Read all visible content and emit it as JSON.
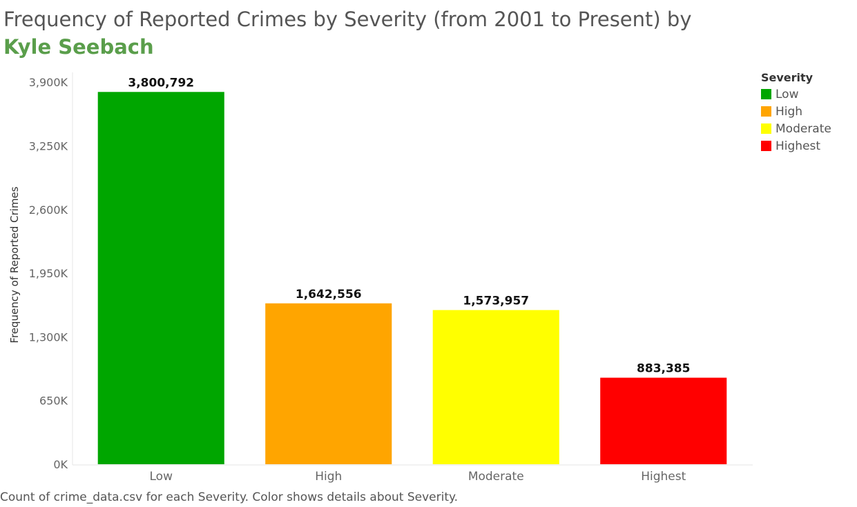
{
  "title": {
    "main": "Frequency of Reported Crimes by Severity (from 2001 to Present) by ",
    "author": "Kyle Seebach"
  },
  "legend": {
    "title": "Severity",
    "items": [
      {
        "label": "Low",
        "color": "#00a600"
      },
      {
        "label": "High",
        "color": "#ffa500"
      },
      {
        "label": "Moderate",
        "color": "#ffff00"
      },
      {
        "label": "Highest",
        "color": "#ff0000"
      }
    ]
  },
  "caption": "Count of crime_data.csv for each Severity.  Color shows details about Severity.",
  "chart_data": {
    "type": "bar",
    "title": "Frequency of Reported Crimes by Severity (from 2001 to Present) by Kyle Seebach",
    "xlabel": "",
    "ylabel": "Frequency of Reported Crimes",
    "categories": [
      "Low",
      "High",
      "Moderate",
      "Highest"
    ],
    "values": [
      3800792,
      1642556,
      1573957,
      883385
    ],
    "value_labels": [
      "3,800,792",
      "1,642,556",
      "1,573,957",
      "883,385"
    ],
    "colors": [
      "#00a600",
      "#ffa500",
      "#ffff00",
      "#ff0000"
    ],
    "ylim": [
      0,
      4000000
    ],
    "yticks": [
      0,
      650000,
      1300000,
      1950000,
      2600000,
      3250000,
      3900000
    ],
    "ytick_labels": [
      "0K",
      "650K",
      "1,300K",
      "1,950K",
      "2,600K",
      "3,250K",
      "3,900K"
    ],
    "grid": false,
    "legend_position": "top-right"
  }
}
